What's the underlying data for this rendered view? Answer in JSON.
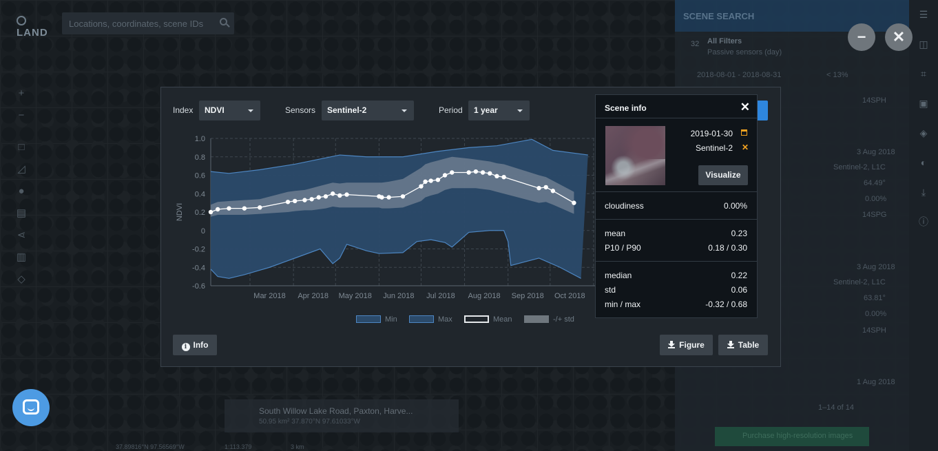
{
  "map": {
    "logo_text": "LAND",
    "search_placeholder": "Locations, coordinates, scene IDs",
    "location": {
      "title": "South Willow Lake Road, Paxton, Harve...",
      "subtitle": "50.95 km² 37.870°N 97.61033°W"
    },
    "coords": "37.89816°N 97.56569°W",
    "scale": "1:113.379",
    "scale_km": "3 km"
  },
  "sidebar": {
    "title": "SCENE SEARCH",
    "filters_count": "32",
    "filters_title": "All Filters",
    "filters_sub": "Passive sensors (day)",
    "date_range": "2018-08-01 - 2018-08-31",
    "cloud_filter": "< 13%",
    "items": [
      {
        "tile": "14SPH"
      },
      {
        "date": "3 Aug 2018",
        "sensor": "Sentinel-2, L1C",
        "angle": "64.49°",
        "cloud": "0.00%",
        "tile": "14SPG"
      },
      {
        "date": "3 Aug 2018",
        "sensor": "Sentinel-2, L1C",
        "angle": "63.81°",
        "cloud": "0.00%",
        "tile": "14SPH"
      },
      {
        "date": "1 Aug 2018"
      }
    ],
    "pagination": "1–14 of 14",
    "purchase_label": "Purchase high-resolution images"
  },
  "controls": {
    "index_label": "Index",
    "index_value": "NDVI",
    "sensors_label": "Sensors",
    "sensors_value": "Sentinel-2",
    "period_label": "Period",
    "period_value": "1 year"
  },
  "buttons": {
    "info": "Info",
    "figure": "Figure",
    "table": "Table",
    "minimize": "−",
    "close": "✕"
  },
  "chart_data": {
    "type": "line",
    "ylabel": "NDVI",
    "ylim": [
      -0.6,
      1.0
    ],
    "yticks": [
      "1.0",
      "0.8",
      "0.6",
      "0.4",
      "0.2",
      "0",
      "-0.2",
      "-0.4",
      "-0.6"
    ],
    "xticks": [
      "Mar 2018",
      "Apr 2018",
      "May 2018",
      "Jun 2018",
      "Jul 2018",
      "Aug 2018",
      "Sep 2018",
      "Oct 2018"
    ],
    "grid": true,
    "legend": [
      "Min",
      "Max",
      "Mean",
      "-/+ std"
    ],
    "x": [
      "2018-02-01",
      "2018-02-06",
      "2018-02-14",
      "2018-02-25",
      "2018-03-08",
      "2018-03-28",
      "2018-04-02",
      "2018-04-09",
      "2018-04-14",
      "2018-04-19",
      "2018-04-24",
      "2018-04-29",
      "2018-05-04",
      "2018-05-09",
      "2018-06-01",
      "2018-06-03",
      "2018-06-08",
      "2018-06-18",
      "2018-07-01",
      "2018-07-04",
      "2018-07-08",
      "2018-07-13",
      "2018-07-18",
      "2018-07-23",
      "2018-08-04",
      "2018-08-09",
      "2018-08-14",
      "2018-08-19",
      "2018-08-24",
      "2018-08-29",
      "2018-09-23",
      "2018-09-28",
      "2018-10-03",
      "2018-10-18"
    ],
    "series": [
      {
        "name": "Mean",
        "values": [
          0.2,
          0.23,
          0.24,
          0.24,
          0.25,
          0.31,
          0.32,
          0.33,
          0.34,
          0.36,
          0.37,
          0.4,
          0.38,
          0.39,
          0.37,
          0.36,
          0.36,
          0.37,
          0.48,
          0.53,
          0.54,
          0.55,
          0.6,
          0.63,
          0.63,
          0.64,
          0.63,
          0.62,
          0.59,
          0.58,
          0.46,
          0.47,
          0.43,
          0.3
        ]
      },
      {
        "name": "Max",
        "x": [
          "2018-02-01",
          "2018-02-14",
          "2018-03-08",
          "2018-04-02",
          "2018-05-04",
          "2018-05-23",
          "2018-06-18",
          "2018-07-13",
          "2018-08-04",
          "2018-08-24",
          "2018-09-18",
          "2018-10-03",
          "2018-10-28"
        ],
        "values": [
          0.64,
          0.62,
          0.66,
          0.72,
          0.82,
          0.8,
          0.8,
          0.86,
          0.9,
          0.92,
          0.99,
          0.87,
          0.82
        ]
      },
      {
        "name": "Min",
        "x": [
          "2018-02-01",
          "2018-02-06",
          "2018-02-14",
          "2018-02-25",
          "2018-03-15",
          "2018-04-02",
          "2018-04-20",
          "2018-04-29",
          "2018-05-04",
          "2018-05-09",
          "2018-05-23",
          "2018-06-01",
          "2018-06-18",
          "2018-06-28",
          "2018-07-08",
          "2018-07-18",
          "2018-07-23",
          "2018-08-04",
          "2018-08-19",
          "2018-08-29",
          "2018-09-01",
          "2018-09-03",
          "2018-09-23",
          "2018-10-08",
          "2018-10-23"
        ],
        "values": [
          -0.42,
          -0.5,
          -0.52,
          -0.48,
          -0.4,
          -0.3,
          -0.2,
          -0.36,
          -0.3,
          -0.15,
          -0.22,
          -0.25,
          -0.24,
          -0.12,
          -0.1,
          -0.13,
          -0.18,
          -0.02,
          0.0,
          0.0,
          -0.12,
          -0.38,
          -0.3,
          -0.4,
          -0.52
        ]
      },
      {
        "name": "-/+ std",
        "upper": [
          0.28,
          0.31,
          0.32,
          0.33,
          0.34,
          0.42,
          0.43,
          0.44,
          0.46,
          0.48,
          0.5,
          0.52,
          0.51,
          0.52,
          0.52,
          0.52,
          0.53,
          0.56,
          0.68,
          0.72,
          0.74,
          0.76,
          0.78,
          0.8,
          0.78,
          0.77,
          0.76,
          0.75,
          0.73,
          0.72,
          0.6,
          0.58,
          0.54,
          0.42
        ],
        "lower": [
          0.15,
          0.17,
          0.17,
          0.17,
          0.18,
          0.2,
          0.21,
          0.22,
          0.22,
          0.23,
          0.24,
          0.26,
          0.25,
          0.25,
          0.25,
          0.24,
          0.24,
          0.25,
          0.32,
          0.36,
          0.38,
          0.4,
          0.44,
          0.46,
          0.46,
          0.46,
          0.45,
          0.44,
          0.42,
          0.4,
          0.3,
          0.31,
          0.28,
          0.18
        ]
      }
    ],
    "colors": {
      "minmax_band": "#2b4a6a",
      "band_edge": "#4d86c2",
      "std_band": "#8893a0",
      "mean": "#ffffff",
      "grid": "#3e474f"
    }
  },
  "scene_info": {
    "title": "Scene info",
    "date": "2019-01-30",
    "sensor": "Sentinel-2",
    "visualize_label": "Visualize",
    "cloudiness_label": "cloudiness",
    "cloudiness_value": "0.00%",
    "mean_label": "mean",
    "mean_value": "0.23",
    "p_label": "P10 / P90",
    "p_value": "0.18 / 0.30",
    "median_label": "median",
    "median_value": "0.22",
    "std_label": "std",
    "std_value": "0.06",
    "minmax_label": "min / max",
    "minmax_value": "-0.32 / 0.68",
    "accent_color": "#f3a321"
  }
}
